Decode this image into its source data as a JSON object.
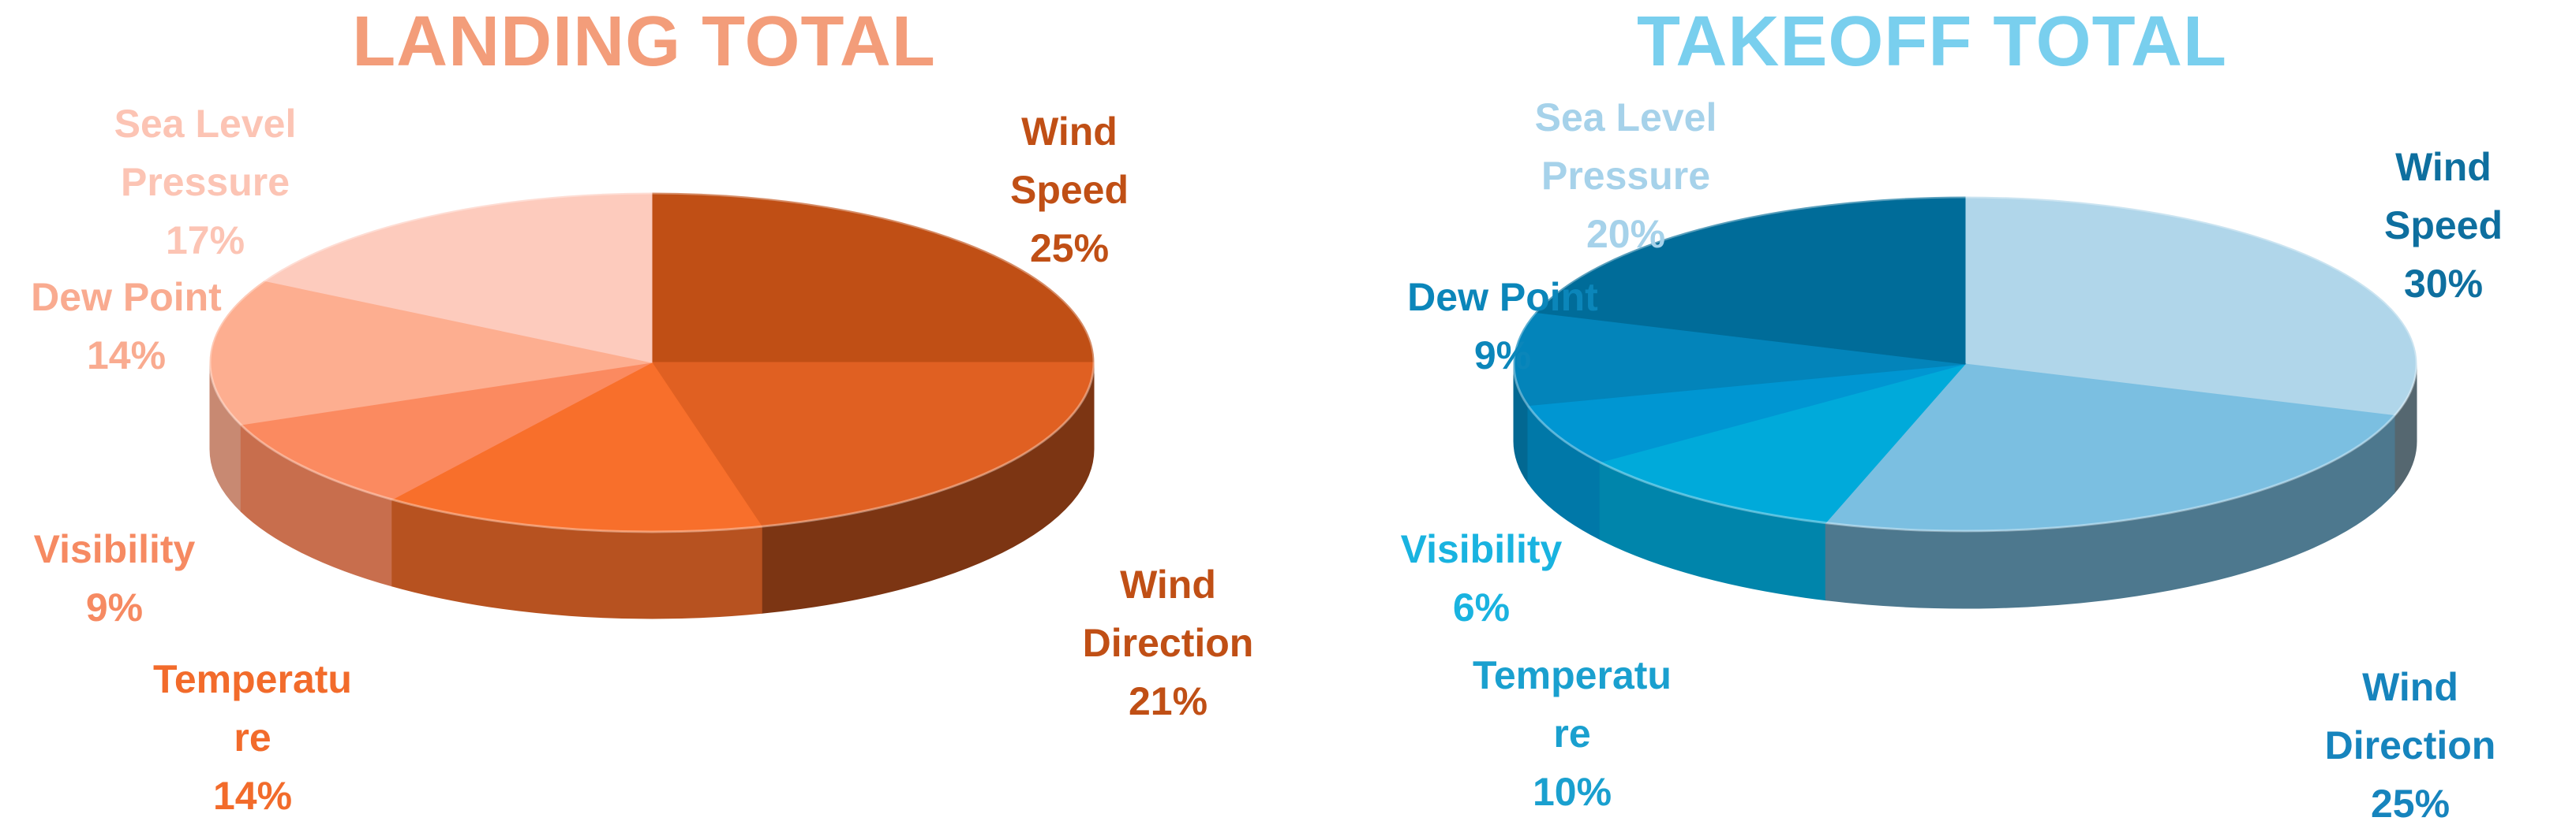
{
  "chart_data": [
    {
      "type": "pie",
      "title": "LANDING TOTAL",
      "title_color": "#f39d7a",
      "categories": [
        "Wind Speed",
        "Wind Direction",
        "Temperature",
        "Visibility",
        "Dew Point",
        "Sea Level Pressure"
      ],
      "values": [
        25,
        21,
        14,
        9,
        14,
        17
      ],
      "slice_colors": [
        "#c04f15",
        "#e06022",
        "#f86f2b",
        "#fb8a60",
        "#fdae90",
        "#fdcbbd"
      ],
      "label_colors": [
        "#c04f15",
        "#c04f15",
        "#f26b2b",
        "#f68a62",
        "#f9ab90",
        "#fcc4b4"
      ],
      "labels": [
        {
          "lines": [
            "Wind",
            "Speed"
          ],
          "pct": "25%"
        },
        {
          "lines": [
            "Wind",
            "Direction"
          ],
          "pct": "21%"
        },
        {
          "lines": [
            "Temperatu",
            "re"
          ],
          "pct": "14%"
        },
        {
          "lines": [
            "Visibility"
          ],
          "pct": "9%"
        },
        {
          "lines": [
            "Dew Point"
          ],
          "pct": "14%"
        },
        {
          "lines": [
            "Sea Level",
            "Pressure"
          ],
          "pct": "17%"
        }
      ]
    },
    {
      "type": "pie",
      "title": "TAKEOFF TOTAL",
      "title_color": "#79cfee",
      "categories": [
        "Wind Speed",
        "Wind Direction",
        "Temperature",
        "Visibility",
        "Dew Point",
        "Sea Level Pressure"
      ],
      "values": [
        30,
        25,
        10,
        6,
        9,
        20
      ],
      "slice_colors": [
        "#b0d6ea",
        "#7bbfe1",
        "#00aada",
        "#0096d2",
        "#0384ba",
        "#006c99"
      ],
      "label_colors": [
        "#0e6f9f",
        "#1684bd",
        "#1aa0cf",
        "#19b3e0",
        "#0b86ba",
        "#a6d2ea"
      ],
      "labels": [
        {
          "lines": [
            "Wind",
            "Speed"
          ],
          "pct": "30%"
        },
        {
          "lines": [
            "Wind",
            "Direction"
          ],
          "pct": "25%"
        },
        {
          "lines": [
            "Temperatu",
            "re"
          ],
          "pct": "10%"
        },
        {
          "lines": [
            "Visibility"
          ],
          "pct": "6%"
        },
        {
          "lines": [
            "Dew Point"
          ],
          "pct": "9%"
        },
        {
          "lines": [
            "Sea Level",
            "Pressure"
          ],
          "pct": "20%"
        }
      ]
    }
  ]
}
